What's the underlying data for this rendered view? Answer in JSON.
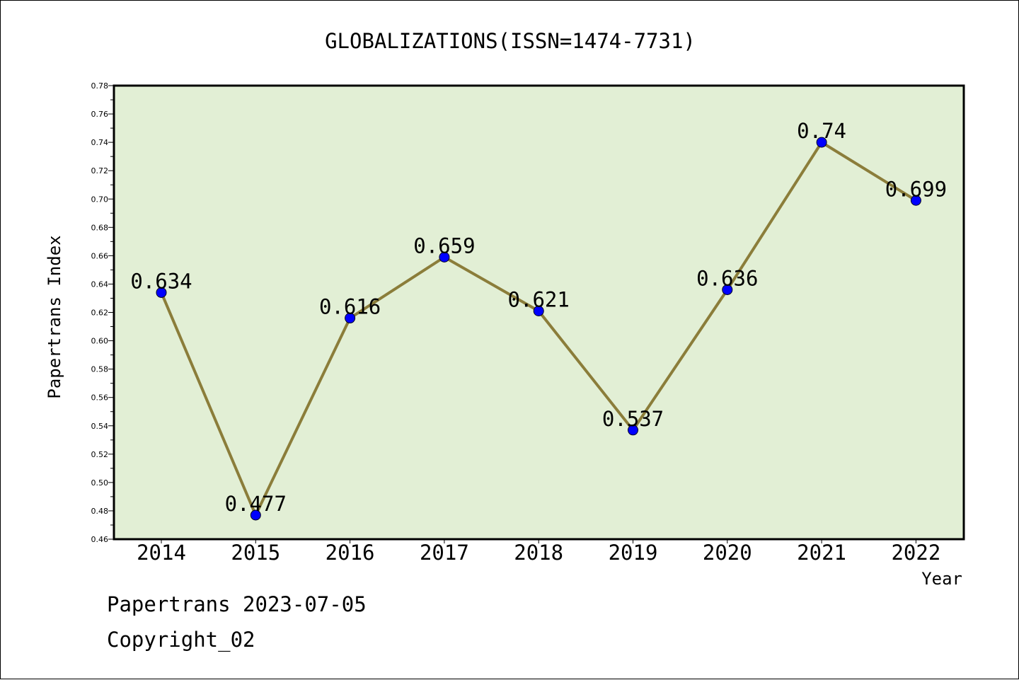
{
  "chart_data": {
    "type": "line",
    "title": "GLOBALIZATIONS(ISSN=1474-7731)",
    "xlabel": "Year",
    "ylabel": "Papertrans Index",
    "categories": [
      "2014",
      "2015",
      "2016",
      "2017",
      "2018",
      "2019",
      "2020",
      "2021",
      "2022"
    ],
    "values": [
      0.634,
      0.477,
      0.616,
      0.659,
      0.621,
      0.537,
      0.636,
      0.74,
      0.699
    ],
    "data_labels": [
      "0.634",
      "0.477",
      "0.616",
      "0.659",
      "0.621",
      "0.537",
      "0.636",
      "0.74",
      "0.699"
    ],
    "ylim": [
      0.46,
      0.78
    ],
    "yticks": [
      "0.46",
      "0.48",
      "0.50",
      "0.52",
      "0.54",
      "0.56",
      "0.58",
      "0.60",
      "0.62",
      "0.64",
      "0.66",
      "0.68",
      "0.70",
      "0.72",
      "0.74",
      "0.76",
      "0.78"
    ],
    "grid": false,
    "colors": {
      "plot_background": "#e2efd5",
      "line": "#8b7d3a",
      "marker": "#0000ff"
    }
  },
  "footer": {
    "line1": "Papertrans 2023-07-05",
    "line2": "Copyright_02"
  }
}
